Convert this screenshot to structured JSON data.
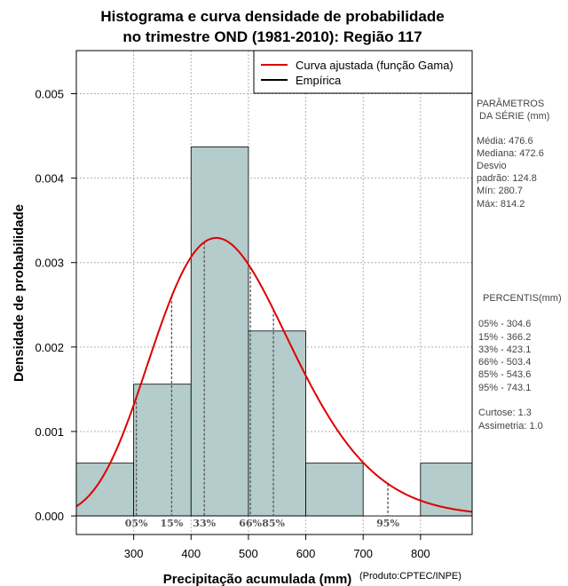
{
  "chart_data": {
    "type": "bar",
    "title_line1": "Histograma e curva densidade de probabilidade",
    "title_line2": "no trimestre OND (1981-2010): Região 117",
    "xlabel": "Precipitação acumulada (mm)",
    "ylabel": "Densidade de probabilidade",
    "credit": "(Produto:CPTEC/INPE)",
    "xlim": [
      200,
      890
    ],
    "ylim": [
      -0.00022,
      0.00551
    ],
    "x_ticks": [
      300,
      400,
      500,
      600,
      700,
      800
    ],
    "y_ticks": [
      "0.000",
      "0.001",
      "0.002",
      "0.003",
      "0.004",
      "0.005"
    ],
    "y_tick_values": [
      0.0,
      0.001,
      0.002,
      0.003,
      0.004,
      0.005
    ],
    "bins": [
      {
        "start": 200,
        "end": 300,
        "density": 0.000625
      },
      {
        "start": 300,
        "end": 400,
        "density": 0.00156
      },
      {
        "start": 400,
        "end": 500,
        "density": 0.00437
      },
      {
        "start": 500,
        "end": 600,
        "density": 0.00219
      },
      {
        "start": 600,
        "end": 700,
        "density": 0.000625
      },
      {
        "start": 700,
        "end": 800,
        "density": 0.0
      },
      {
        "start": 800,
        "end": 890,
        "density": 0.000625
      }
    ],
    "series": [
      {
        "name": "Curva ajustada (função Gama)",
        "color": "#dd0000",
        "mean": 476.6,
        "sd": 124.8
      },
      {
        "name": "Empírica",
        "color": "#000000"
      }
    ],
    "bar_color": "#b4cccb",
    "percentile_marks": [
      {
        "label": "05%",
        "value": 304.6
      },
      {
        "label": "15%",
        "value": 366.2
      },
      {
        "label": "33%",
        "value": 423.1
      },
      {
        "label": "66%",
        "value": 503.4
      },
      {
        "label": "85%",
        "value": 543.6
      },
      {
        "label": "95%",
        "value": 743.1
      }
    ]
  },
  "side_panel": {
    "params_title_1": "PARÂMETROS",
    "params_title_2": "DA SÉRIE (mm)",
    "params": [
      "Média:  476.6",
      "Mediana:  472.6",
      "Desvio",
      "padrão:  124.8",
      "Mín:  280.7",
      "Máx:  814.2"
    ],
    "percentis_title": "PERCENTIS(mm)",
    "percentis": [
      "05% -  304.6",
      "15% -  366.2",
      "33% -  423.1",
      "66% -  503.4",
      "85% -  543.6",
      "95% -  743.1"
    ],
    "shape": [
      "Curtose:  1.3",
      "Assimetria:  1.0"
    ]
  }
}
